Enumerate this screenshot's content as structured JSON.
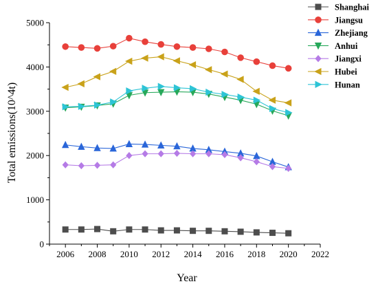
{
  "chart_data": {
    "type": "line",
    "title": "",
    "xlabel": "Year",
    "ylabel": "Total emissions(10^4t)",
    "xlim": [
      2005,
      2022
    ],
    "ylim": [
      0,
      5000
    ],
    "xticks": [
      2006,
      2008,
      2010,
      2012,
      2014,
      2016,
      2018,
      2020,
      2022
    ],
    "yticks": [
      0,
      1000,
      2000,
      3000,
      4000,
      5000
    ],
    "grid": false,
    "legend_position": "top-right",
    "x": [
      2006,
      2007,
      2008,
      2009,
      2010,
      2011,
      2012,
      2013,
      2014,
      2015,
      2016,
      2017,
      2018,
      2019,
      2020
    ],
    "series": [
      {
        "name": "Shanghai",
        "color": "#4d4d4d",
        "marker": "square",
        "values": [
          330,
          330,
          340,
          290,
          330,
          330,
          310,
          310,
          300,
          300,
          290,
          280,
          265,
          255,
          245
        ]
      },
      {
        "name": "Jiangsu",
        "color": "#e8403a",
        "marker": "circle",
        "values": [
          4460,
          4440,
          4420,
          4470,
          4650,
          4570,
          4510,
          4460,
          4440,
          4410,
          4340,
          4210,
          4120,
          4030,
          3970
        ]
      },
      {
        "name": "Zhejiang",
        "color": "#2a66d9",
        "marker": "triangle-up",
        "values": [
          2240,
          2200,
          2170,
          2160,
          2260,
          2250,
          2230,
          2210,
          2160,
          2130,
          2090,
          2050,
          1990,
          1860,
          1740
        ]
      },
      {
        "name": "Anhui",
        "color": "#27a85a",
        "marker": "triangle-down",
        "values": [
          3080,
          3100,
          3130,
          3170,
          3360,
          3420,
          3430,
          3440,
          3430,
          3390,
          3320,
          3250,
          3160,
          3010,
          2900
        ]
      },
      {
        "name": "Jiangxi",
        "color": "#b57be6",
        "marker": "diamond",
        "values": [
          1790,
          1770,
          1780,
          1790,
          2000,
          2040,
          2040,
          2050,
          2040,
          2040,
          2020,
          1950,
          1860,
          1750,
          1710
        ]
      },
      {
        "name": "Hubei",
        "color": "#c9a21a",
        "marker": "triangle-left",
        "values": [
          3540,
          3620,
          3780,
          3900,
          4130,
          4200,
          4230,
          4140,
          4050,
          3940,
          3840,
          3720,
          3450,
          3250,
          3190
        ]
      },
      {
        "name": "Hunan",
        "color": "#2ec4d6",
        "marker": "triangle-right",
        "values": [
          3100,
          3110,
          3140,
          3210,
          3460,
          3520,
          3560,
          3530,
          3510,
          3430,
          3380,
          3320,
          3250,
          3060,
          2970
        ]
      }
    ]
  }
}
